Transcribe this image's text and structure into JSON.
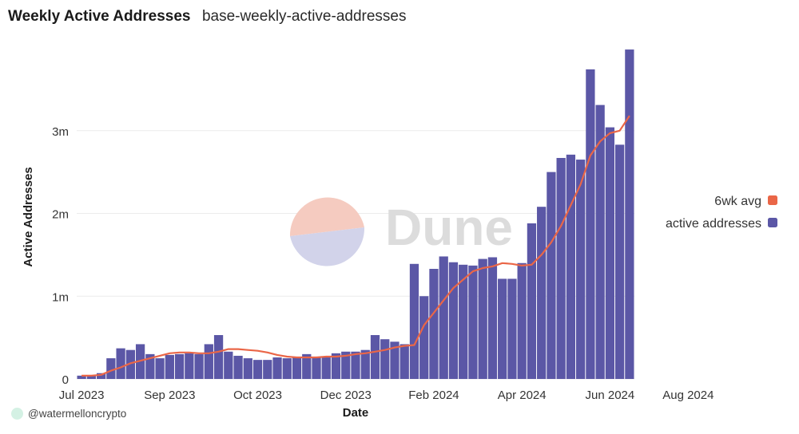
{
  "header": {
    "title": "Weekly Active Addresses",
    "subtitle": "base-weekly-active-addresses"
  },
  "footer": {
    "handle": "@watermelloncrypto"
  },
  "watermark": {
    "text": "Dune"
  },
  "colors": {
    "bars": "#5b57a6",
    "line": "#ea6647",
    "grid": "#ececec",
    "text": "#333333"
  },
  "chart_data": {
    "type": "bar",
    "xlabel": "Date",
    "ylabel": "Active Addresses",
    "ylim": [
      0,
      4000000
    ],
    "yticks": [
      {
        "value": 0,
        "label": "0"
      },
      {
        "value": 1000000,
        "label": "1m"
      },
      {
        "value": 2000000,
        "label": "2m"
      },
      {
        "value": 3000000,
        "label": "3m"
      }
    ],
    "xticks": [
      {
        "index": 0,
        "label": "Jul 2023"
      },
      {
        "index": 9,
        "label": "Sep 2023"
      },
      {
        "index": 18,
        "label": "Oct 2023"
      },
      {
        "index": 27,
        "label": "Dec 2023"
      },
      {
        "index": 36,
        "label": "Feb 2024"
      },
      {
        "index": 45,
        "label": "Apr 2024"
      },
      {
        "index": 54,
        "label": "Jun 2024"
      },
      {
        "index": 62,
        "label": "Aug 2024"
      }
    ],
    "grid": true,
    "legend_position": "right",
    "series": [
      {
        "name": "active addresses",
        "kind": "bar",
        "values": [
          40000,
          40000,
          70000,
          250000,
          370000,
          350000,
          420000,
          300000,
          250000,
          290000,
          300000,
          310000,
          300000,
          420000,
          530000,
          330000,
          280000,
          250000,
          230000,
          230000,
          260000,
          250000,
          270000,
          300000,
          270000,
          270000,
          310000,
          330000,
          330000,
          350000,
          530000,
          480000,
          450000,
          420000,
          1390000,
          1000000,
          1330000,
          1480000,
          1410000,
          1380000,
          1370000,
          1450000,
          1470000,
          1210000,
          1210000,
          1400000,
          1880000,
          2080000,
          2500000,
          2670000,
          2710000,
          2650000,
          3740000,
          3310000,
          3040000,
          2830000,
          3980000
        ]
      },
      {
        "name": "6wk avg",
        "kind": "line",
        "values": [
          40000,
          40000,
          50000,
          100000,
          140000,
          190000,
          220000,
          250000,
          280000,
          310000,
          320000,
          320000,
          310000,
          310000,
          330000,
          360000,
          360000,
          350000,
          340000,
          320000,
          290000,
          270000,
          260000,
          260000,
          260000,
          270000,
          270000,
          280000,
          300000,
          310000,
          330000,
          350000,
          380000,
          400000,
          410000,
          650000,
          800000,
          950000,
          1100000,
          1200000,
          1300000,
          1340000,
          1360000,
          1400000,
          1390000,
          1370000,
          1380000,
          1500000,
          1650000,
          1850000,
          2100000,
          2350000,
          2700000,
          2870000,
          2970000,
          3000000,
          3180000
        ]
      }
    ]
  }
}
